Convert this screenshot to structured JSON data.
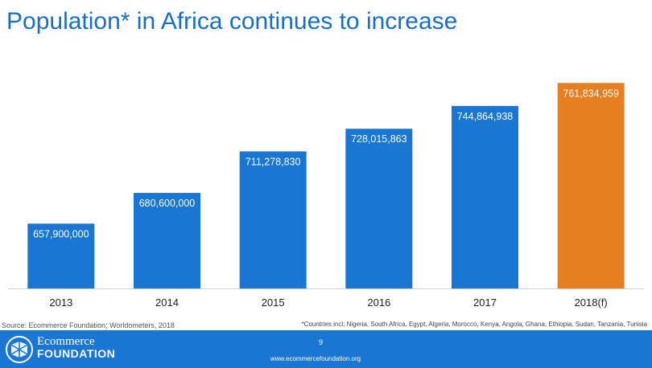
{
  "title": "Population* in Africa continues to increase",
  "source": "Source: Ecommerce Foundation; Worldometers, 2018",
  "note": "*Countries incl: Nigeria, South Africa, Egypt, Algeria, Morocco, Kenya, Angola, Ghana, Ethiopia, Sudan, Tanzania, Tunisia",
  "footer": {
    "logo_line1": "Ecommerce",
    "logo_line2": "FOUNDATION",
    "page_number": "9",
    "url": "www.ecommercefoundation.org"
  },
  "colors": {
    "bar": "#1976d2",
    "highlight": "#e67e22",
    "title": "#1a6fc4",
    "footer": "#1976d2"
  },
  "icons": [
    "ecommerce-foundation-logo-icon"
  ],
  "chart_data": {
    "type": "bar",
    "title": "Population* in Africa continues to increase",
    "xlabel": "",
    "ylabel": "",
    "categories": [
      "2013",
      "2014",
      "2015",
      "2016",
      "2017",
      "2018(f)"
    ],
    "values": [
      657900000,
      680600000,
      711278830,
      728015863,
      744864938,
      761834959
    ],
    "value_labels": [
      "657,900,000",
      "680,600,000",
      "711,278,830",
      "728,015,863",
      "744,864,938",
      "761,834,959"
    ],
    "highlight_index": 5,
    "ylim": [
      610000000,
      762000000
    ],
    "grid": false,
    "legend": "none"
  }
}
